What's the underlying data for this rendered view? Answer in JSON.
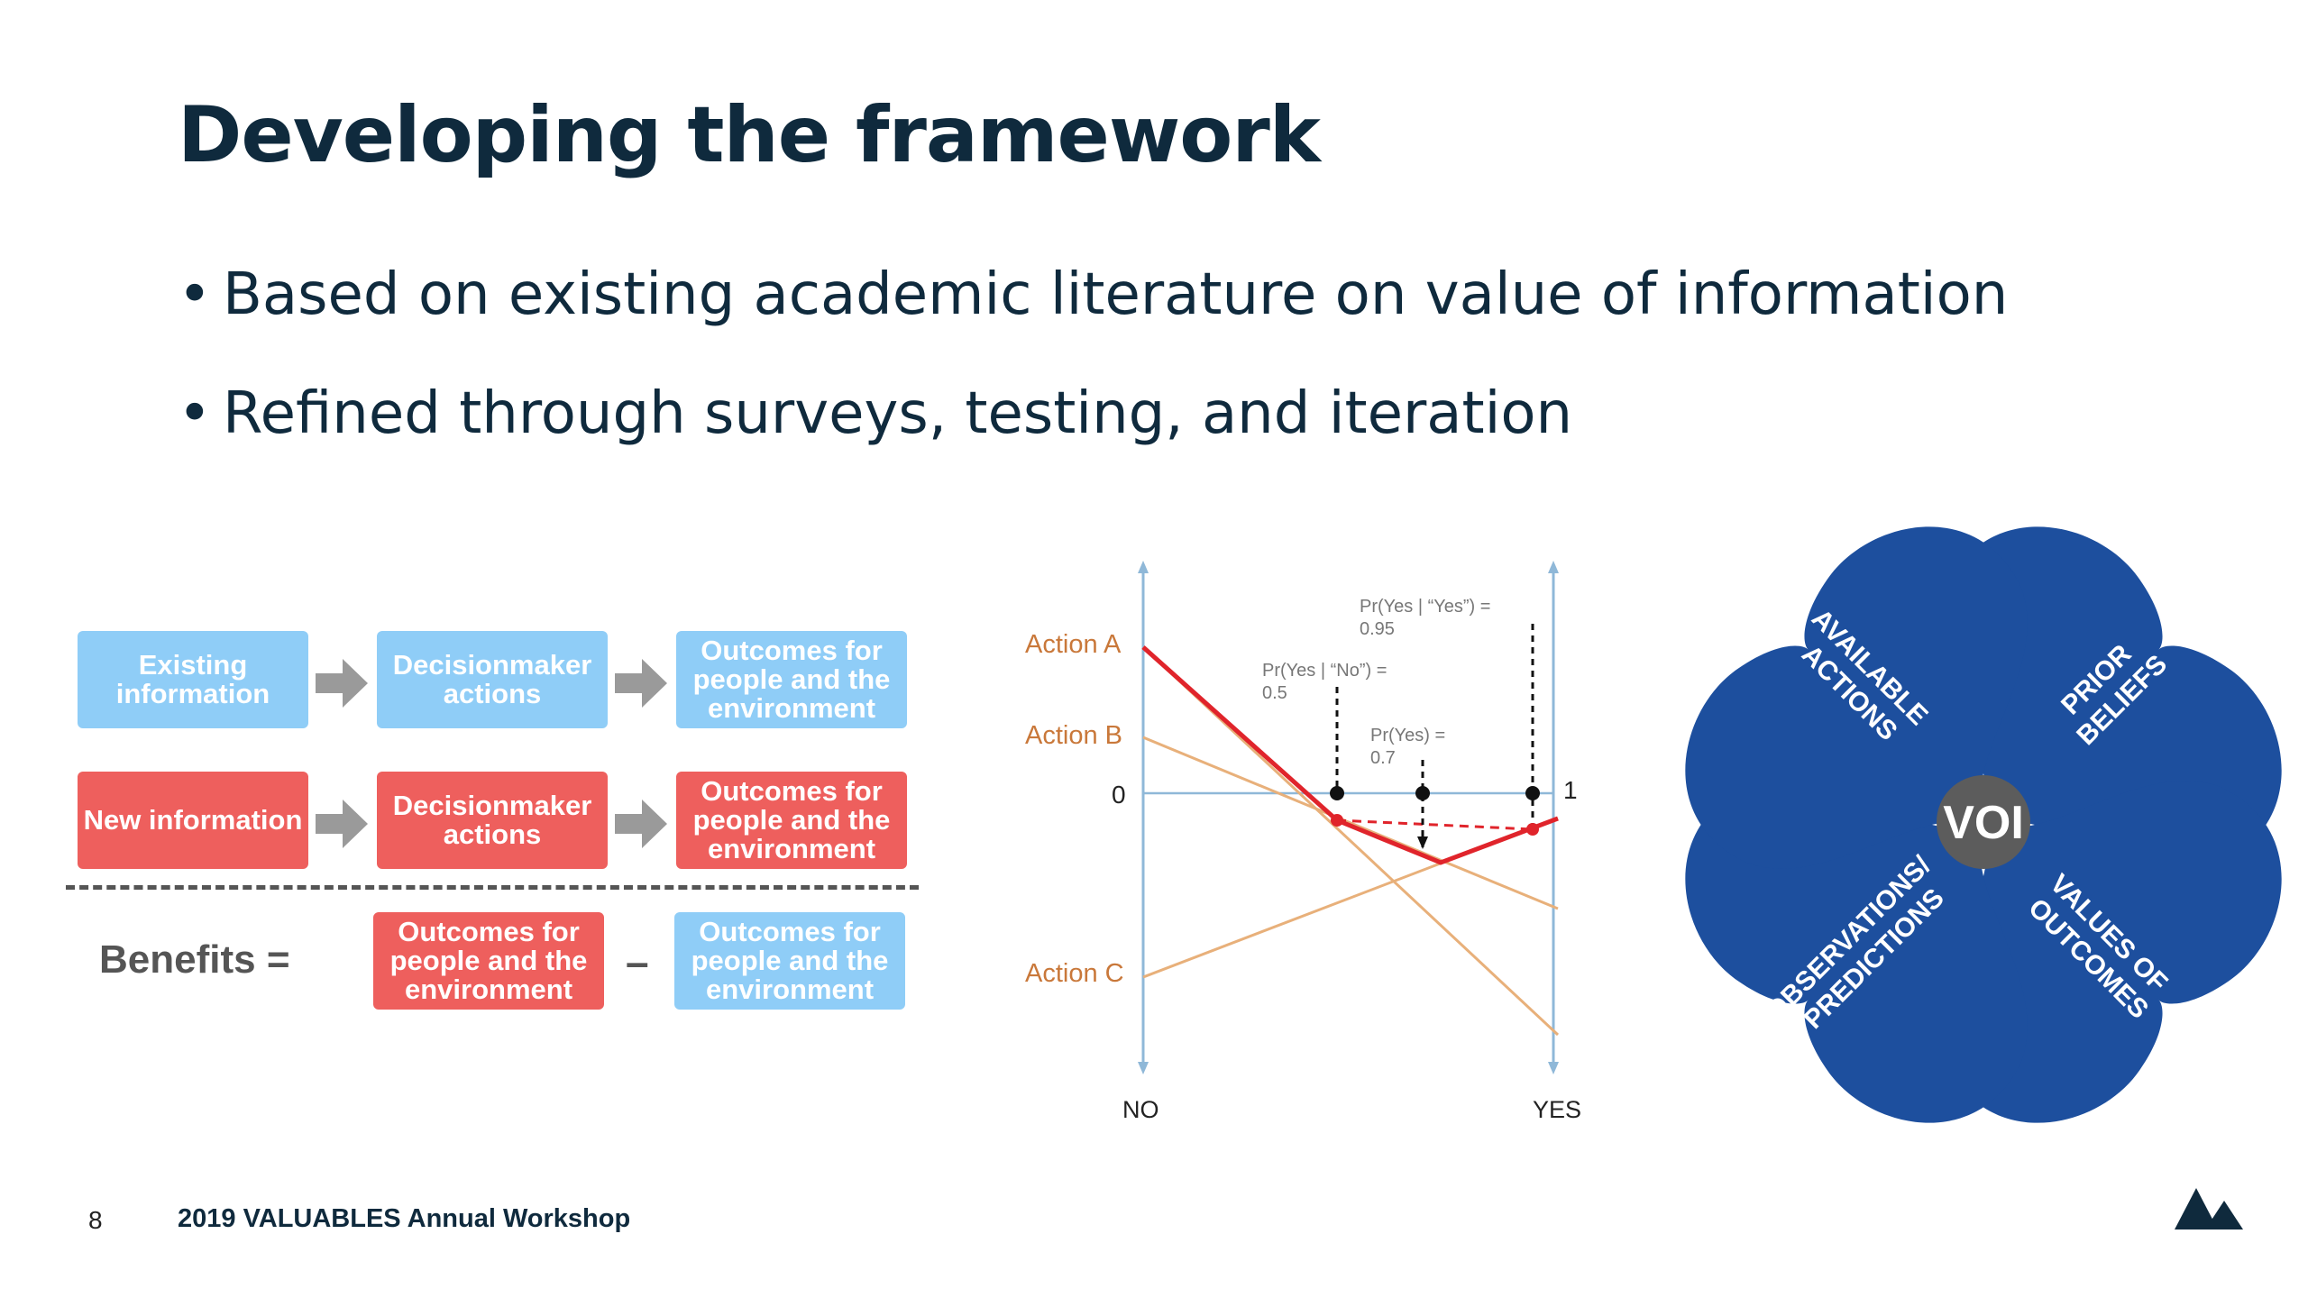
{
  "title": "Developing the framework",
  "bullets": [
    "Based on existing academic literature on value of information",
    "Refined through surveys, testing, and iteration"
  ],
  "flow": {
    "row1": [
      "Existing information",
      "Decisionmaker actions",
      "Outcomes for people and the environment"
    ],
    "row2": [
      "New information",
      "Decisionmaker actions",
      "Outcomes for people and the environment"
    ],
    "benefits_label": "Benefits =",
    "benefit_terms": [
      "Outcomes for people and the environment",
      "Outcomes for people and the environment"
    ],
    "minus": "–",
    "colors": {
      "blue": "#8fcdf7",
      "red": "#ee5f5d"
    }
  },
  "chart": {
    "action_labels": [
      "Action A",
      "Action B",
      "Action C"
    ],
    "zero_label": "0",
    "one_label": "1",
    "x_labels": [
      "NO",
      "YES"
    ],
    "annotations": [
      "Pr(Yes | “Yes”) =",
      "0.95",
      "Pr(Yes | “No”) =",
      "0.5",
      "Pr(Yes) =",
      "0.7"
    ]
  },
  "voi": {
    "center": "VOI",
    "petals": [
      [
        "AVAILABLE",
        "ACTIONS"
      ],
      [
        "PRIOR",
        "BELIEFS"
      ],
      [
        "OBSERVATIONS/",
        "PREDICTIONS"
      ],
      [
        "VALUES OF",
        "OUTCOMES"
      ]
    ],
    "color": "#1d4f9e"
  },
  "footer": {
    "page": "8",
    "text": "2019 VALUABLES Annual Workshop"
  }
}
